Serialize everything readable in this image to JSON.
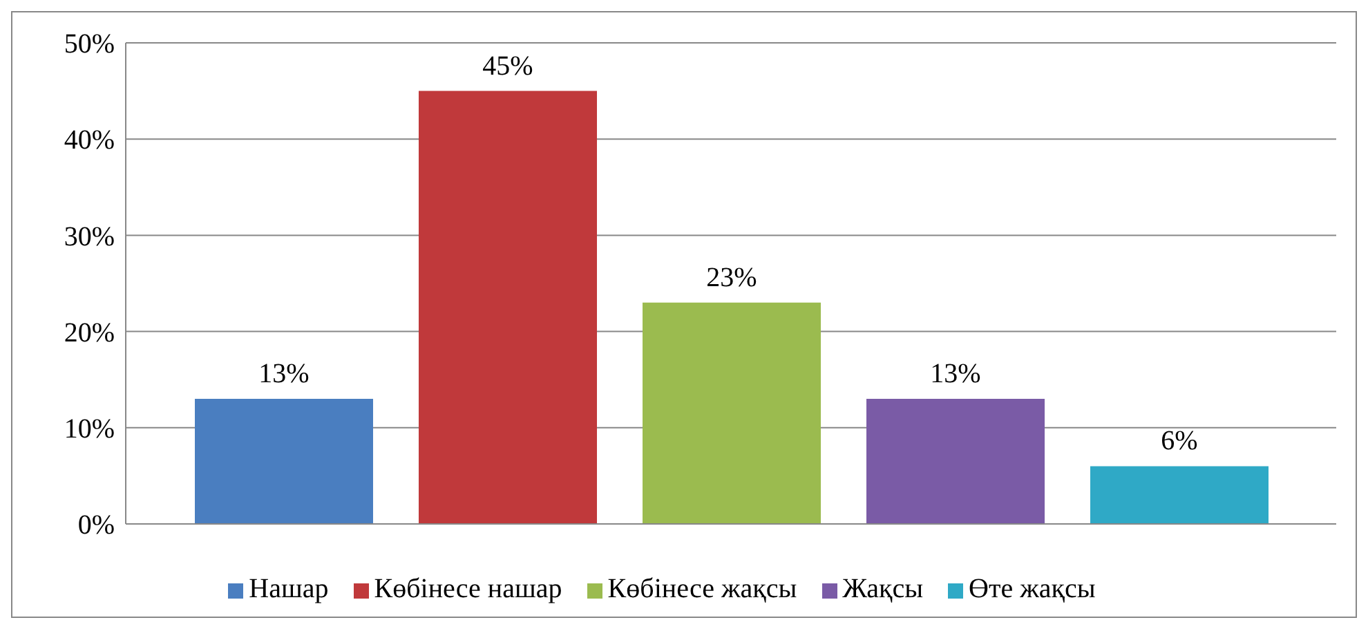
{
  "chart_data": {
    "type": "bar",
    "categories": [
      null
    ],
    "series": [
      {
        "name": "Нашар",
        "color": "#4a7ec0",
        "values": [
          13
        ],
        "value_labels": [
          "13%"
        ]
      },
      {
        "name": "Көбінесе нашар",
        "color": "#c0393b",
        "values": [
          45
        ],
        "value_labels": [
          "45%"
        ]
      },
      {
        "name": "Көбінесе жақсы",
        "color": "#9bbb4f",
        "values": [
          23
        ],
        "value_labels": [
          "23%"
        ]
      },
      {
        "name": "Жақсы",
        "color": "#7a5ba6",
        "values": [
          13
        ],
        "value_labels": [
          "13%"
        ]
      },
      {
        "name": "Өте жақсы",
        "color": "#2fa9c6",
        "values": [
          6
        ],
        "value_labels": [
          "6%"
        ]
      }
    ],
    "ylim": [
      0,
      50
    ],
    "yticks": [
      {
        "value": 0,
        "label": "0%"
      },
      {
        "value": 10,
        "label": "10%"
      },
      {
        "value": 20,
        "label": "20%"
      },
      {
        "value": 30,
        "label": "30%"
      },
      {
        "value": 40,
        "label": "40%"
      },
      {
        "value": 50,
        "label": "50%"
      }
    ],
    "grid": "y",
    "legend": "bottom"
  }
}
